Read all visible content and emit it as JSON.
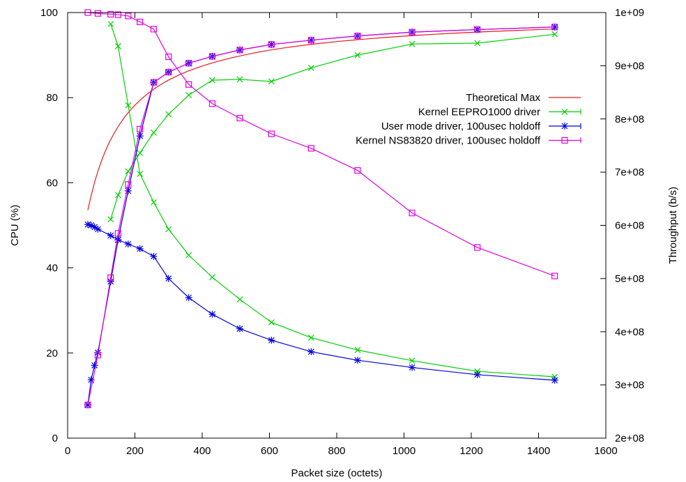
{
  "chart_data": {
    "type": "line",
    "title": "",
    "xlabel": "Packet size (octets)",
    "ylabel": "CPU (%)",
    "y2label": "Throughput (b/s)",
    "xlim": [
      0,
      1600
    ],
    "ylim": [
      0,
      100
    ],
    "y2lim": [
      200000000,
      1000000000
    ],
    "x_ticks": [
      "0",
      "200",
      "400",
      "600",
      "800",
      "1000",
      "1200",
      "1400",
      "1600"
    ],
    "y_ticks": [
      "0",
      "20",
      "40",
      "60",
      "80",
      "100"
    ],
    "y2_ticks": [
      "2e+08",
      "3e+08",
      "4e+08",
      "5e+08",
      "6e+08",
      "7e+08",
      "8e+08",
      "9e+08",
      "1e+09"
    ],
    "legend_position": "right, middle-upper",
    "grid": false,
    "series": [
      {
        "name": "Theoretical Max",
        "axis": "y2",
        "color": "#e41a1c",
        "marker": "none",
        "x": [
          60,
          70,
          80,
          90,
          100,
          110,
          120,
          130,
          140,
          150,
          160,
          170,
          180,
          190,
          200,
          220,
          240,
          260,
          280,
          300,
          330,
          360,
          400,
          430,
          460,
          500,
          550,
          600,
          650,
          700,
          750,
          800,
          850,
          900,
          950,
          1000,
          1050,
          1100,
          1150,
          1200,
          1250,
          1300,
          1350,
          1400,
          1450
        ],
        "y": [
          628600000,
          656200000,
          680700000,
          701800000,
          720100000,
          736300000,
          750700000,
          763500000,
          775100000,
          785500000,
          795000000,
          803700000,
          811700000,
          819000000,
          825800000,
          838000000,
          848500000,
          857700000,
          865800000,
          873100000,
          882400000,
          890400000,
          899400000,
          905300000,
          910600000,
          916800000,
          923500000,
          929200000,
          934100000,
          938300000,
          942100000,
          945400000,
          948300000,
          951000000,
          953400000,
          955600000,
          957600000,
          959500000,
          961200000,
          962700000,
          964200000,
          965500000,
          966800000,
          968000000,
          969000000
        ]
      },
      {
        "name": "Kernel EEPRO1000 driver",
        "axis": "y",
        "color": "#00d000",
        "marker": "x",
        "curves": [
          {
            "x": [
              128,
              150,
              180,
              215,
              256,
              300,
              360,
              430,
              512,
              606,
              724,
              862,
              1024,
              1218,
              1448
            ],
            "y": [
              97.3,
              92.1,
              78.2,
              62.1,
              55.4,
              49.1,
              43.0,
              37.8,
              32.6,
              27.2,
              23.6,
              20.7,
              18.2,
              15.7,
              14.4
            ]
          },
          {
            "x": [
              128,
              150,
              180,
              215,
              256,
              300,
              360,
              430,
              512,
              606,
              724,
              862,
              1024,
              1218,
              1448
            ],
            "y": [
              51.4,
              57.1,
              62.7,
              67.0,
              71.8,
              76.1,
              80.6,
              84.1,
              84.3,
              83.8,
              87.0,
              90.0,
              92.6,
              92.8,
              94.9
            ]
          }
        ]
      },
      {
        "name": "User mode driver, 100usec holdoff",
        "axis": "y",
        "color": "#0000e0",
        "marker": "*",
        "curves": [
          {
            "x": [
              60,
              70,
              80,
              90,
              128,
              150,
              180,
              215,
              256,
              300,
              360,
              430,
              512,
              606,
              724,
              862,
              1024,
              1218,
              1448
            ],
            "y": [
              50.2,
              50.0,
              49.6,
              49.1,
              47.6,
              46.6,
              45.6,
              44.5,
              42.7,
              37.5,
              33.0,
              29.1,
              25.7,
              23.0,
              20.3,
              18.3,
              16.6,
              14.9,
              13.6
            ]
          },
          {
            "x": [
              60,
              70,
              80,
              90,
              128,
              150,
              180,
              215,
              256,
              300,
              360,
              430,
              512,
              606,
              724,
              862,
              1024,
              1218,
              1448
            ],
            "y": [
              7.8,
              13.7,
              17.1,
              20.1,
              36.8,
              46.6,
              58.1,
              71.0,
              83.6,
              86.0,
              88.1,
              89.7,
              91.2,
              92.5,
              93.5,
              94.5,
              95.4,
              96.0,
              96.6
            ]
          }
        ]
      },
      {
        "name": "Kernel NS83820 driver, 100usec holdoff",
        "axis": "y",
        "color": "#e000e0",
        "marker": "square",
        "curves": [
          {
            "x": [
              60,
              90,
              128,
              150,
              180,
              215,
              256,
              300,
              360,
              430,
              512,
              606,
              724,
              862,
              1024,
              1218,
              1448
            ],
            "y": [
              100.0,
              99.8,
              99.6,
              99.5,
              99.2,
              97.8,
              96.1,
              89.6,
              83.1,
              78.6,
              75.2,
              71.5,
              68.1,
              62.9,
              52.9,
              44.8,
              38.1
            ]
          },
          {
            "x": [
              60,
              90,
              128,
              150,
              180,
              215,
              256,
              300,
              360,
              430,
              512,
              606,
              724,
              862,
              1024,
              1218,
              1448
            ],
            "y": [
              7.8,
              19.5,
              37.7,
              48.1,
              59.6,
              72.6,
              83.6,
              86.0,
              88.1,
              89.7,
              91.2,
              92.5,
              93.5,
              94.5,
              95.4,
              96.0,
              96.6
            ]
          }
        ]
      }
    ]
  }
}
